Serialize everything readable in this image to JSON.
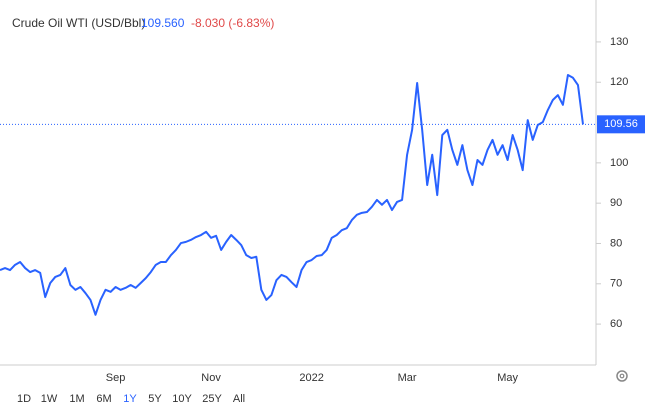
{
  "chart_data": {
    "type": "line",
    "title": "Crude Oil WTI (USD/Bbl)",
    "price": "109.560",
    "change": "-8.030 (-6.83%)",
    "price_color": "#2962ff",
    "change_color": "#e04848",
    "color": "#2962ff",
    "categories": [
      null,
      null,
      null,
      null,
      null,
      null,
      null,
      null,
      null,
      null,
      null,
      null,
      null,
      null,
      null,
      null,
      null,
      null,
      null,
      null,
      null,
      null,
      null,
      "Sep",
      null,
      null,
      null,
      null,
      null,
      null,
      null,
      null,
      null,
      null,
      null,
      null,
      null,
      null,
      null,
      null,
      null,
      null,
      "Nov",
      null,
      null,
      null,
      null,
      null,
      null,
      null,
      null,
      null,
      null,
      null,
      null,
      null,
      null,
      null,
      null,
      null,
      null,
      null,
      "2022",
      null,
      null,
      null,
      null,
      null,
      null,
      null,
      null,
      null,
      null,
      null,
      null,
      null,
      null,
      null,
      null,
      null,
      null,
      "Mar",
      null,
      null,
      null,
      null,
      null,
      null,
      null,
      null,
      null,
      null,
      null,
      null,
      null,
      null,
      null,
      null,
      null,
      null,
      null,
      "May",
      null,
      null,
      null,
      null,
      null,
      null,
      null,
      null,
      null,
      null,
      null,
      null,
      null,
      null,
      null
    ],
    "values": [
      73.4,
      73.9,
      73.4,
      74.7,
      75.4,
      73.9,
      72.9,
      73.4,
      72.7,
      66.7,
      70.2,
      71.7,
      72.2,
      73.9,
      69.7,
      68.5,
      69.2,
      67.7,
      66.0,
      62.3,
      66.0,
      68.5,
      68.0,
      69.2,
      68.5,
      69.0,
      69.7,
      69.0,
      70.2,
      71.4,
      72.9,
      74.7,
      75.4,
      75.4,
      77.1,
      78.4,
      80.1,
      80.4,
      80.9,
      81.6,
      82.1,
      82.9,
      81.4,
      81.9,
      78.4,
      80.4,
      82.1,
      80.9,
      79.6,
      77.1,
      76.4,
      76.7,
      68.5,
      66.0,
      67.2,
      70.9,
      72.2,
      71.7,
      70.4,
      69.2,
      73.4,
      75.4,
      75.9,
      76.9,
      77.1,
      78.4,
      81.4,
      82.1,
      83.3,
      83.8,
      85.8,
      87.1,
      87.6,
      87.8,
      89.1,
      90.8,
      89.6,
      90.8,
      88.3,
      90.3,
      90.8,
      102.0,
      108.2,
      119.8,
      108.2,
      94.5,
      102.0,
      92.0,
      106.9,
      108.2,
      103.2,
      99.5,
      104.4,
      98.2,
      94.5,
      100.7,
      99.5,
      103.2,
      105.7,
      102.0,
      104.4,
      100.7,
      106.9,
      103.2,
      98.2,
      110.6,
      105.7,
      109.4,
      110.1,
      113.1,
      115.6,
      116.8,
      114.4,
      121.8,
      121.1,
      119.3,
      109.56
    ],
    "last_value_label": "109.56",
    "ylim": [
      50.35,
      140.4
    ],
    "yticks": [
      60,
      70,
      80,
      90,
      100,
      120,
      130
    ],
    "grid": false,
    "range_buttons": [
      "1D",
      "1W",
      "1M",
      "6M",
      "1Y",
      "5Y",
      "10Y",
      "25Y",
      "All"
    ],
    "selected_range": 4
  }
}
